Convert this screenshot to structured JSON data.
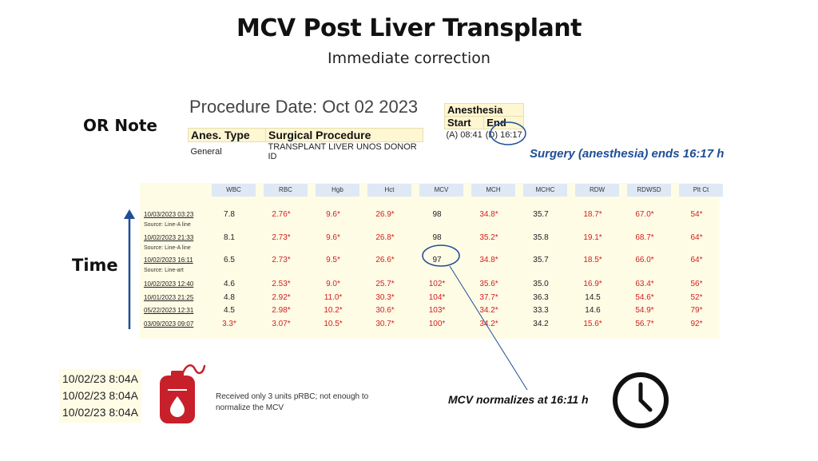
{
  "title": "MCV Post Liver Transplant",
  "subtitle": "Immediate correction",
  "or_note_label": "OR Note",
  "time_label": "Time",
  "procedure": {
    "date_text": "Procedure Date: Oct 02 2023",
    "anes_type_header": "Anes. Type",
    "surgical_header": "Surgical Procedure",
    "anes_type": "General",
    "surgical_procedure": "TRANSPLANT LIVER UNOS DONOR ID",
    "anesthesia_header": "Anesthesia",
    "start_header": "Start",
    "end_header": "End",
    "start_value": "(A) 08:41",
    "end_value": "(D) 16:17"
  },
  "surgery_note": "Surgery (anesthesia) ends 16:17 h",
  "lab": {
    "columns": [
      "WBC",
      "RBC",
      "Hgb",
      "Hct",
      "MCV",
      "MCH",
      "MCHC",
      "RDW",
      "RDWSD",
      "Plt Ct"
    ],
    "rows": [
      {
        "date": "10/03/2023 03:23",
        "source": "Source: Line-A line",
        "values": [
          "7.8",
          "2.76*",
          "9.6*",
          "26.9*",
          "98",
          "34.8*",
          "35.7",
          "18.7*",
          "67.0*",
          "54*"
        ]
      },
      {
        "date": "10/02/2023 21:33",
        "source": "Source: Line-A line",
        "values": [
          "8.1",
          "2.73*",
          "9.6*",
          "26.8*",
          "98",
          "35.2*",
          "35.8",
          "19.1*",
          "68.7*",
          "64*"
        ]
      },
      {
        "date": "10/02/2023 16:11",
        "source": "Source: Line-art",
        "values": [
          "6.5",
          "2.73*",
          "9.5*",
          "26.6*",
          "97",
          "34.8*",
          "35.7",
          "18.5*",
          "66.0*",
          "64*"
        ]
      },
      {
        "date": "10/02/2023 12:40",
        "source": "",
        "values": [
          "4.6",
          "2.53*",
          "9.0*",
          "25.7*",
          "102*",
          "35.6*",
          "35.0",
          "16.9*",
          "63.4*",
          "56*"
        ]
      },
      {
        "date": "10/01/2023 21:25",
        "source": "",
        "values": [
          "4.8",
          "2.92*",
          "11.0*",
          "30.3*",
          "104*",
          "37.7*",
          "36.3",
          "14.5",
          "54.6*",
          "52*"
        ]
      },
      {
        "date": "05/22/2023 12:31",
        "source": "",
        "values": [
          "4.5",
          "2.98*",
          "10.2*",
          "30.6*",
          "103*",
          "34.2*",
          "33.3",
          "14.6",
          "54.9*",
          "79*"
        ]
      },
      {
        "date": "03/09/2023 09:07",
        "source": "",
        "values": [
          "3.3*",
          "3.07*",
          "10.5*",
          "30.7*",
          "100*",
          "34.2*",
          "34.2",
          "15.6*",
          "56.7*",
          "92*"
        ]
      }
    ]
  },
  "blood_times": [
    "10/02/23 8:04A",
    "10/02/23 8:04A",
    "10/02/23 8:04A"
  ],
  "prbc_note": "Received only 3 units pRBC; not enough to normalize the MCV",
  "mcv_note": "MCV normalizes at 16:11 h",
  "colors": {
    "accent_blue": "#1f4e96",
    "abnormal_red": "#d21e1e",
    "lab_bg": "#fffce6",
    "header_bg": "#dfe8f5",
    "blood_bag": "#c8202b"
  },
  "icons": [
    "blood-bag-icon",
    "clock-icon",
    "up-arrow-icon"
  ]
}
